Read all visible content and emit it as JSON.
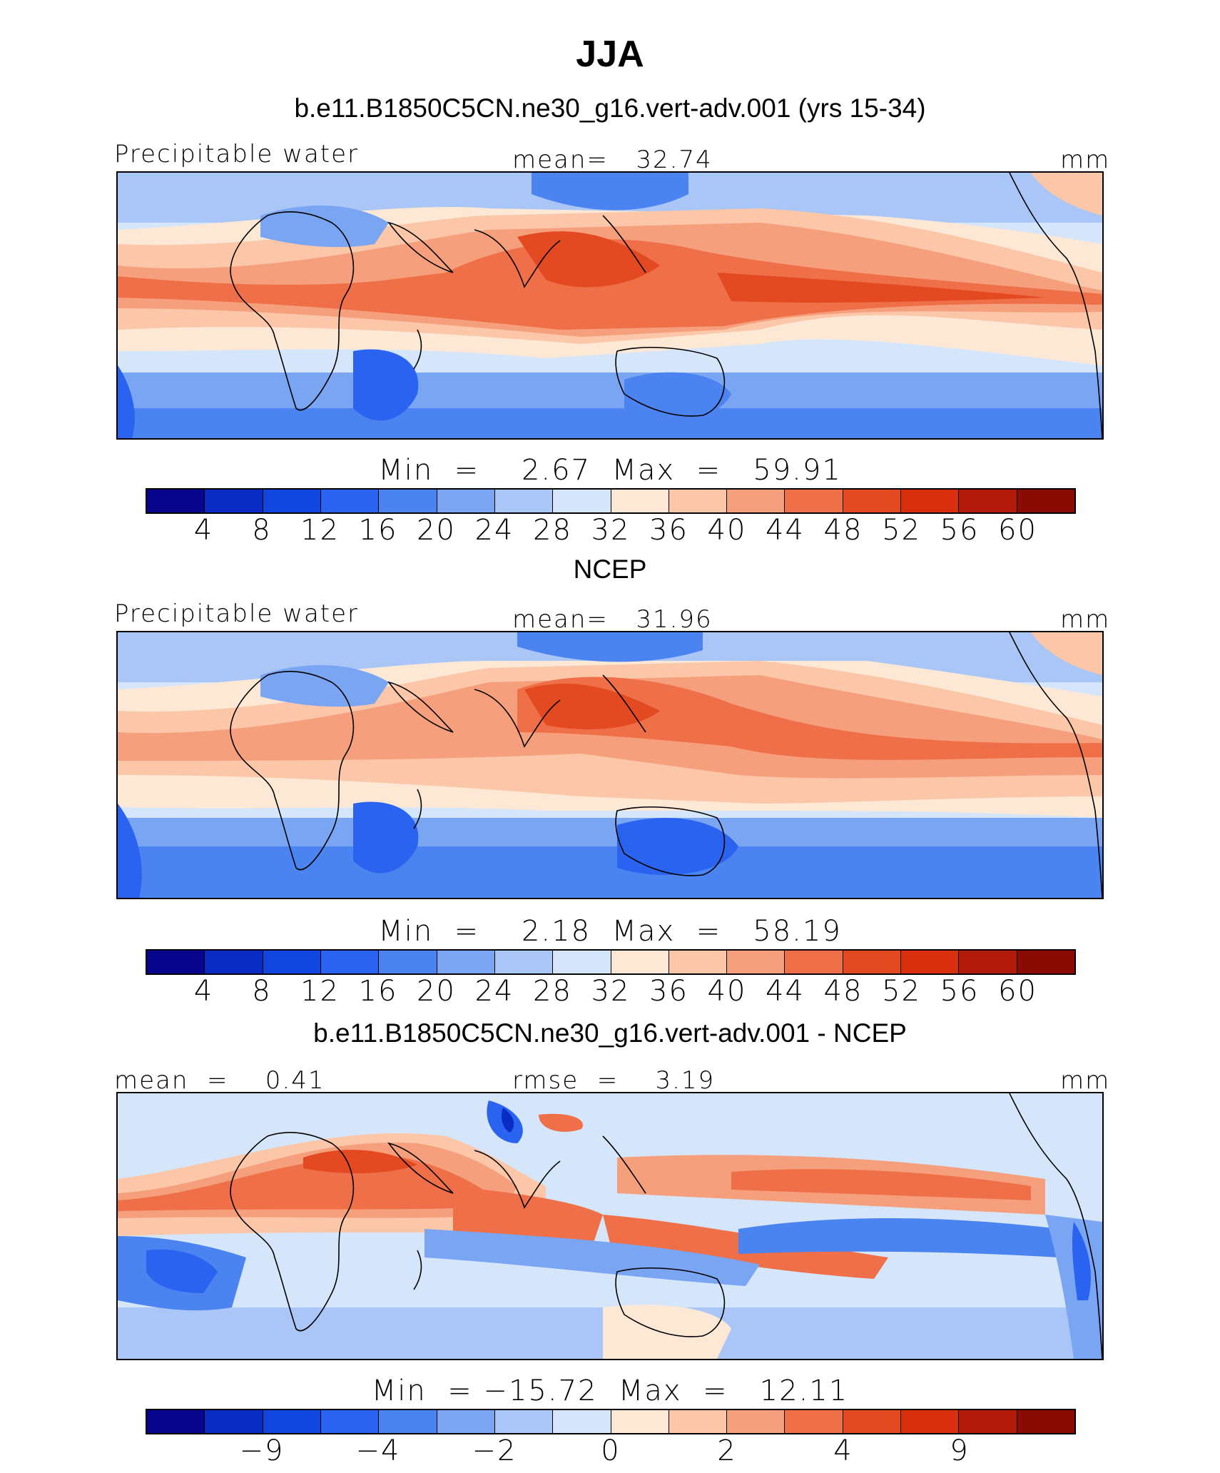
{
  "figure": {
    "title": "JJA",
    "units": "mm",
    "colors": [
      "#08048c",
      "#0a2bc4",
      "#1147e0",
      "#2a63f0",
      "#4b83f0",
      "#7aa5f2",
      "#a9c6f7",
      "#d5e6fb",
      "#fde8d6",
      "#fbc7a8",
      "#f69f7c",
      "#ef6f48",
      "#e44a22",
      "#d8300f",
      "#b21a0c",
      "#8a0a04"
    ]
  },
  "panels": [
    {
      "title": "b.e11.B1850C5CN.ne30_g16.vert-adv.001 (yrs 15-34)",
      "left_label": "Precipitable water",
      "center_label": "mean=   32.74",
      "right_label": "mm",
      "minmax": "Min  =    2.67  Max  =   59.91",
      "cbar_ticks": [
        "4",
        "8",
        "12",
        "16",
        "20",
        "24",
        "28",
        "32",
        "36",
        "40",
        "44",
        "48",
        "52",
        "56",
        "60"
      ]
    },
    {
      "title": "NCEP",
      "left_label": "Precipitable water",
      "center_label": "mean=   31.96",
      "right_label": "mm",
      "minmax": "Min  =    2.18  Max  =   58.19",
      "cbar_ticks": [
        "4",
        "8",
        "12",
        "16",
        "20",
        "24",
        "28",
        "32",
        "36",
        "40",
        "44",
        "48",
        "52",
        "56",
        "60"
      ]
    },
    {
      "title": "b.e11.B1850C5CN.ne30_g16.vert-adv.001 - NCEP",
      "left_label": "mean  =    0.41",
      "center_label": "rmse  =    3.19",
      "right_label": "mm",
      "minmax": "Min  = −15.72  Max  =   12.11",
      "cbar_ticks": [
        "−9",
        "−4",
        "−2",
        "0",
        "2",
        "4",
        "9"
      ]
    }
  ]
}
